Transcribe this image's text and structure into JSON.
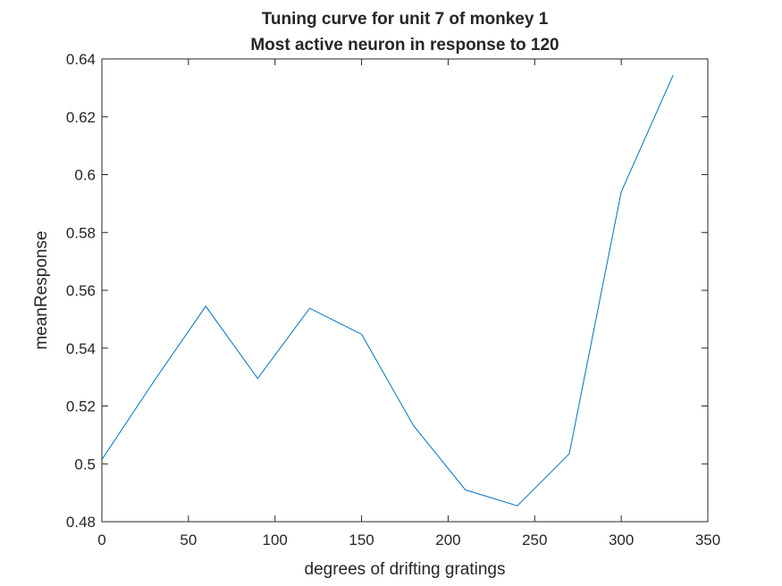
{
  "chart_data": {
    "type": "line",
    "title": [
      "Tuning curve for unit 7 of monkey 1",
      "Most active neuron in response to 120"
    ],
    "xlabel": "degrees of drifting gratings",
    "ylabel": "meanResponse",
    "xlim": [
      0,
      350
    ],
    "ylim": [
      0.48,
      0.64
    ],
    "x_ticks": [
      0,
      50,
      100,
      150,
      200,
      250,
      300,
      350
    ],
    "x_tick_labels": [
      "0",
      "50",
      "100",
      "150",
      "200",
      "250",
      "300",
      "350"
    ],
    "y_ticks": [
      0.48,
      0.5,
      0.52,
      0.54,
      0.56,
      0.58,
      0.6,
      0.62,
      0.64
    ],
    "y_tick_labels": [
      "0.48",
      "0.5",
      "0.52",
      "0.54",
      "0.56",
      "0.58",
      "0.6",
      "0.62",
      "0.64"
    ],
    "grid": false,
    "series": [
      {
        "color": "#0072bd",
        "x": [
          0,
          30,
          60,
          90,
          120,
          150,
          180,
          210,
          240,
          270,
          300,
          330
        ],
        "y": [
          0.5015,
          0.5285,
          0.5545,
          0.5295,
          0.5538,
          0.5448,
          0.5132,
          0.491,
          0.4855,
          0.5035,
          0.594,
          0.6345
        ]
      }
    ]
  }
}
